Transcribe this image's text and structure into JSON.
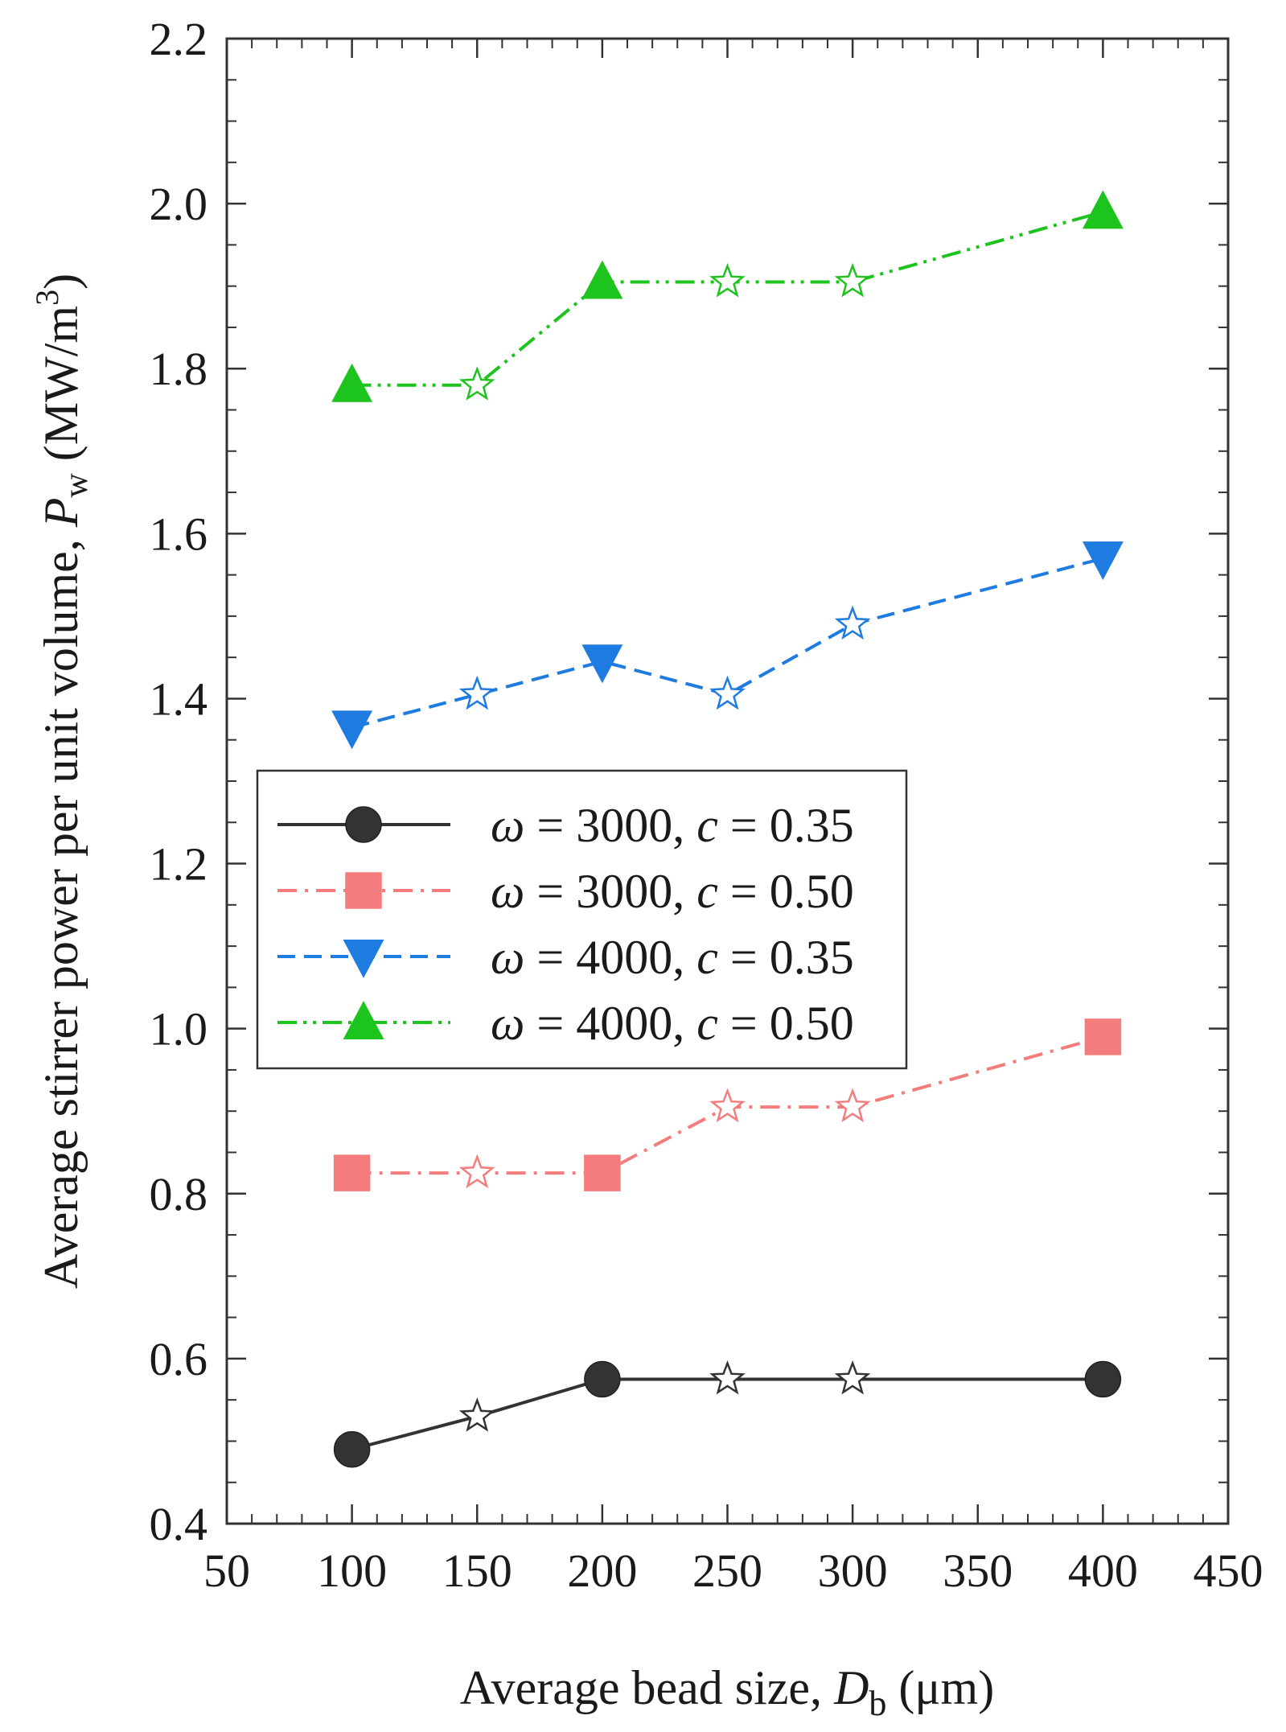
{
  "chart_data": {
    "type": "line",
    "xlabel": {
      "prefix": "Average bead size, ",
      "symbol": "D",
      "subscript": "b",
      "suffix": " (μm)"
    },
    "ylabel": {
      "prefix": "Average stirrer power per unit volume, ",
      "symbol": "P",
      "subscript": "w",
      "suffix": " (MW/m",
      "superscript": "3",
      "close": ")"
    },
    "xlim": [
      50,
      450
    ],
    "ylim": [
      0.4,
      2.2
    ],
    "xticks": [
      50,
      100,
      150,
      200,
      250,
      300,
      350,
      400,
      450
    ],
    "yticks": [
      0.4,
      0.6,
      0.8,
      1.0,
      1.2,
      1.4,
      1.6,
      1.8,
      2.0,
      2.2
    ],
    "xtick_labels": [
      "50",
      "100",
      "150",
      "200",
      "250",
      "300",
      "350",
      "400",
      "450"
    ],
    "ytick_labels": [
      "0.4",
      "0.6",
      "0.8",
      "1.0",
      "1.2",
      "1.4",
      "1.6",
      "1.8",
      "2.0",
      "2.2"
    ],
    "grid": false,
    "legend_position": "center-left",
    "x": [
      100,
      150,
      200,
      250,
      300,
      400
    ],
    "series": [
      {
        "omega": "3000",
        "c": "0.35",
        "color": "#333333",
        "line_style": "solid",
        "marker": "circle",
        "values": [
          0.49,
          0.53,
          0.575,
          0.575,
          0.575,
          0.575
        ],
        "marker_types": [
          "filled",
          "star",
          "filled",
          "star",
          "star",
          "filled"
        ]
      },
      {
        "omega": "3000",
        "c": "0.50",
        "color": "#f47c7c",
        "line_style": "dash-dot",
        "marker": "square",
        "values": [
          0.825,
          0.825,
          0.825,
          0.905,
          0.905,
          0.99
        ],
        "marker_types": [
          "filled",
          "star",
          "filled",
          "star",
          "star",
          "filled"
        ]
      },
      {
        "omega": "4000",
        "c": "0.35",
        "color": "#1e7be0",
        "line_style": "dashed",
        "marker": "triangle-down",
        "values": [
          1.365,
          1.405,
          1.445,
          1.405,
          1.49,
          1.57
        ],
        "marker_types": [
          "filled",
          "star",
          "filled",
          "star",
          "star",
          "filled"
        ]
      },
      {
        "omega": "4000",
        "c": "0.50",
        "color": "#1ec41e",
        "line_style": "dash-dot-dot",
        "marker": "triangle-up",
        "values": [
          1.78,
          1.78,
          1.905,
          1.905,
          1.905,
          1.99
        ],
        "marker_types": [
          "filled",
          "star",
          "filled",
          "star",
          "star",
          "filled"
        ]
      }
    ],
    "legend_entries": [
      {
        "omega_symbol": "ω",
        "eq1": " = 3000, ",
        "c_symbol": "c",
        "eq2": " = 0.35"
      },
      {
        "omega_symbol": "ω",
        "eq1": " = 3000, ",
        "c_symbol": "c",
        "eq2": " = 0.50"
      },
      {
        "omega_symbol": "ω",
        "eq1": " = 4000, ",
        "c_symbol": "c",
        "eq2": " = 0.35"
      },
      {
        "omega_symbol": "ω",
        "eq1": " = 4000, ",
        "c_symbol": "c",
        "eq2": " = 0.50"
      }
    ]
  }
}
